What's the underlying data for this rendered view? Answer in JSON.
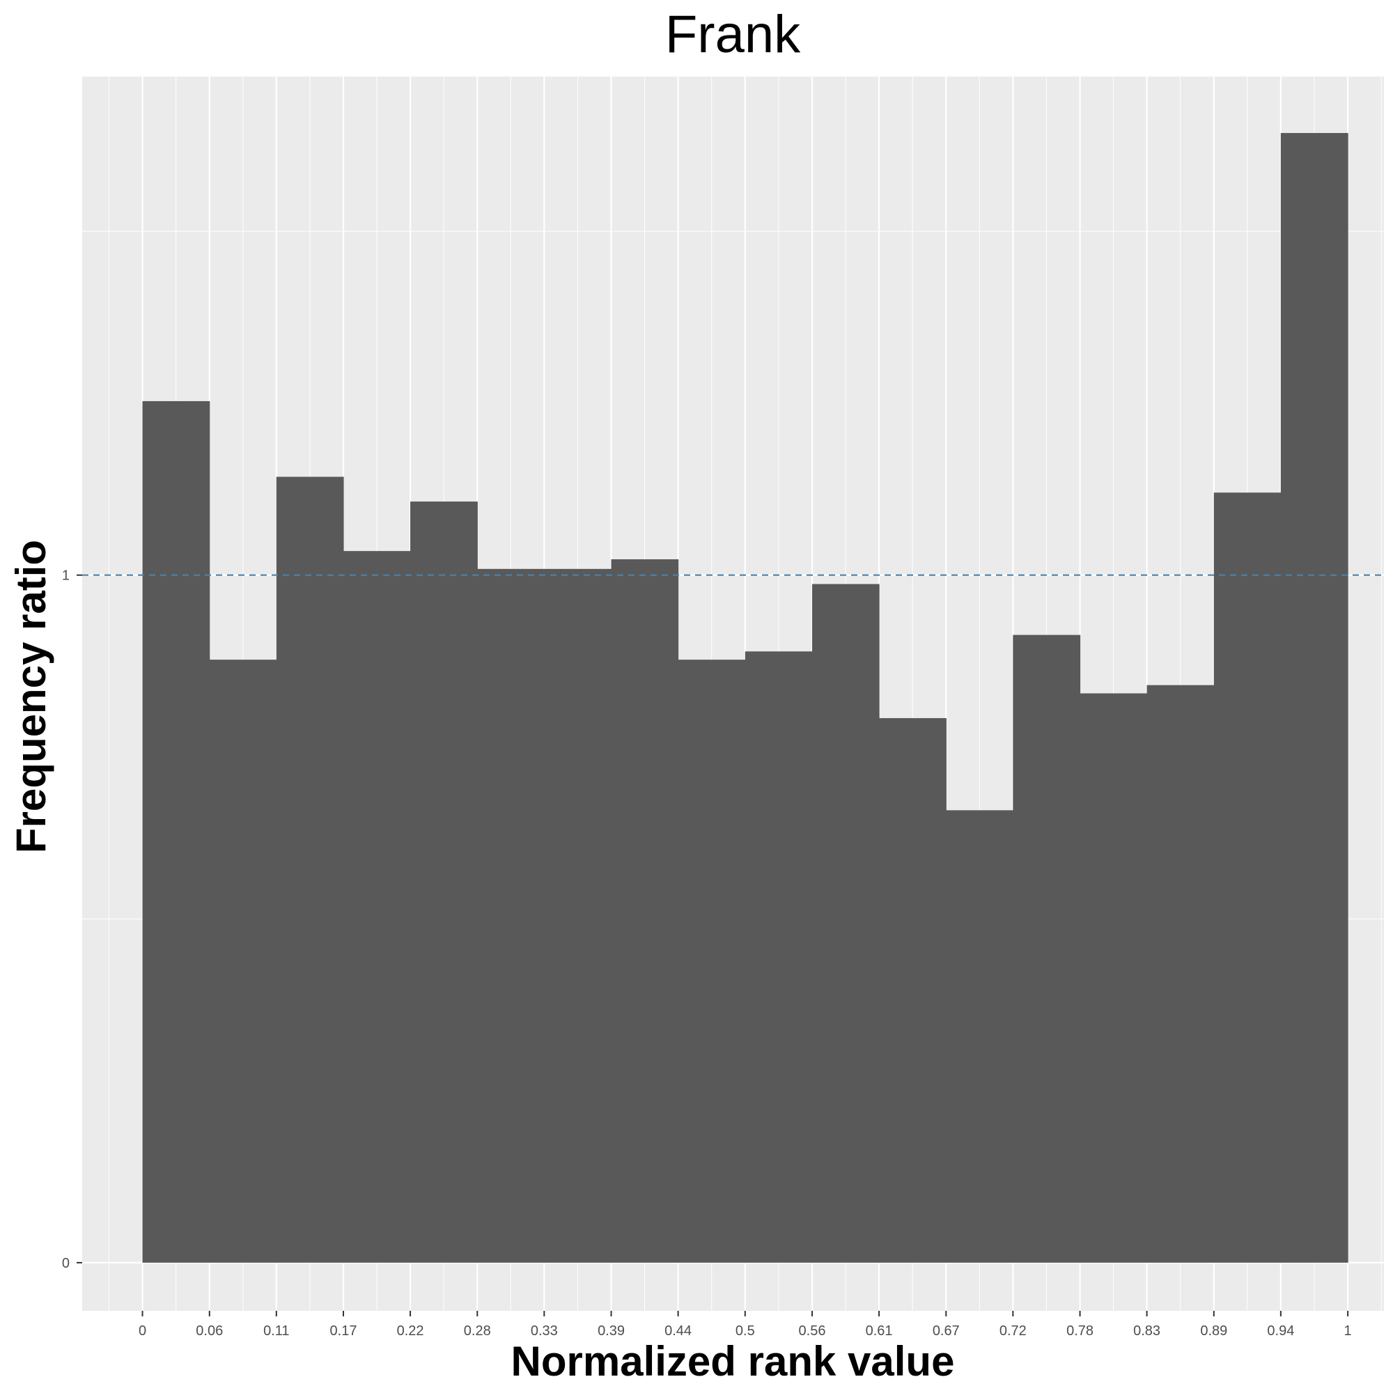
{
  "chart_data": {
    "type": "bar",
    "title": "Frank",
    "xlabel": "Normalized rank value",
    "ylabel": "Frequency ratio",
    "x_tick_labels": [
      "0",
      "0.06",
      "0.11",
      "0.17",
      "0.22",
      "0.28",
      "0.33",
      "0.39",
      "0.44",
      "0.5",
      "0.56",
      "0.61",
      "0.67",
      "0.72",
      "0.78",
      "0.83",
      "0.89",
      "0.94",
      "1"
    ],
    "y_tick_labels": [
      "0",
      "1"
    ],
    "y_ticks": [
      0,
      1
    ],
    "bins": [
      [
        0,
        0.0556
      ],
      [
        0.0556,
        0.1111
      ],
      [
        0.1111,
        0.1667
      ],
      [
        0.1667,
        0.2222
      ],
      [
        0.2222,
        0.2778
      ],
      [
        0.2778,
        0.3333
      ],
      [
        0.3333,
        0.3889
      ],
      [
        0.3889,
        0.4444
      ],
      [
        0.4444,
        0.5
      ],
      [
        0.5,
        0.5556
      ],
      [
        0.5556,
        0.6111
      ],
      [
        0.6111,
        0.6667
      ],
      [
        0.6667,
        0.7222
      ],
      [
        0.7222,
        0.7778
      ],
      [
        0.7778,
        0.8333
      ],
      [
        0.8333,
        0.8889
      ],
      [
        0.8889,
        0.9444
      ],
      [
        0.9444,
        1
      ]
    ],
    "values": [
      1.253,
      0.877,
      1.143,
      1.035,
      1.107,
      1.009,
      1.009,
      1.023,
      0.877,
      0.889,
      0.987,
      0.792,
      0.658,
      0.913,
      0.828,
      0.84,
      1.12,
      1.643
    ],
    "xlim": [
      -0.05,
      1.03
    ],
    "ylim": [
      -0.07,
      1.725
    ],
    "reference_line": {
      "y": 1,
      "style": "dashed",
      "color": "#4682b4"
    },
    "bar_color": "#595959",
    "panel_background": "#ebebeb",
    "grid": true,
    "legend": "none"
  }
}
